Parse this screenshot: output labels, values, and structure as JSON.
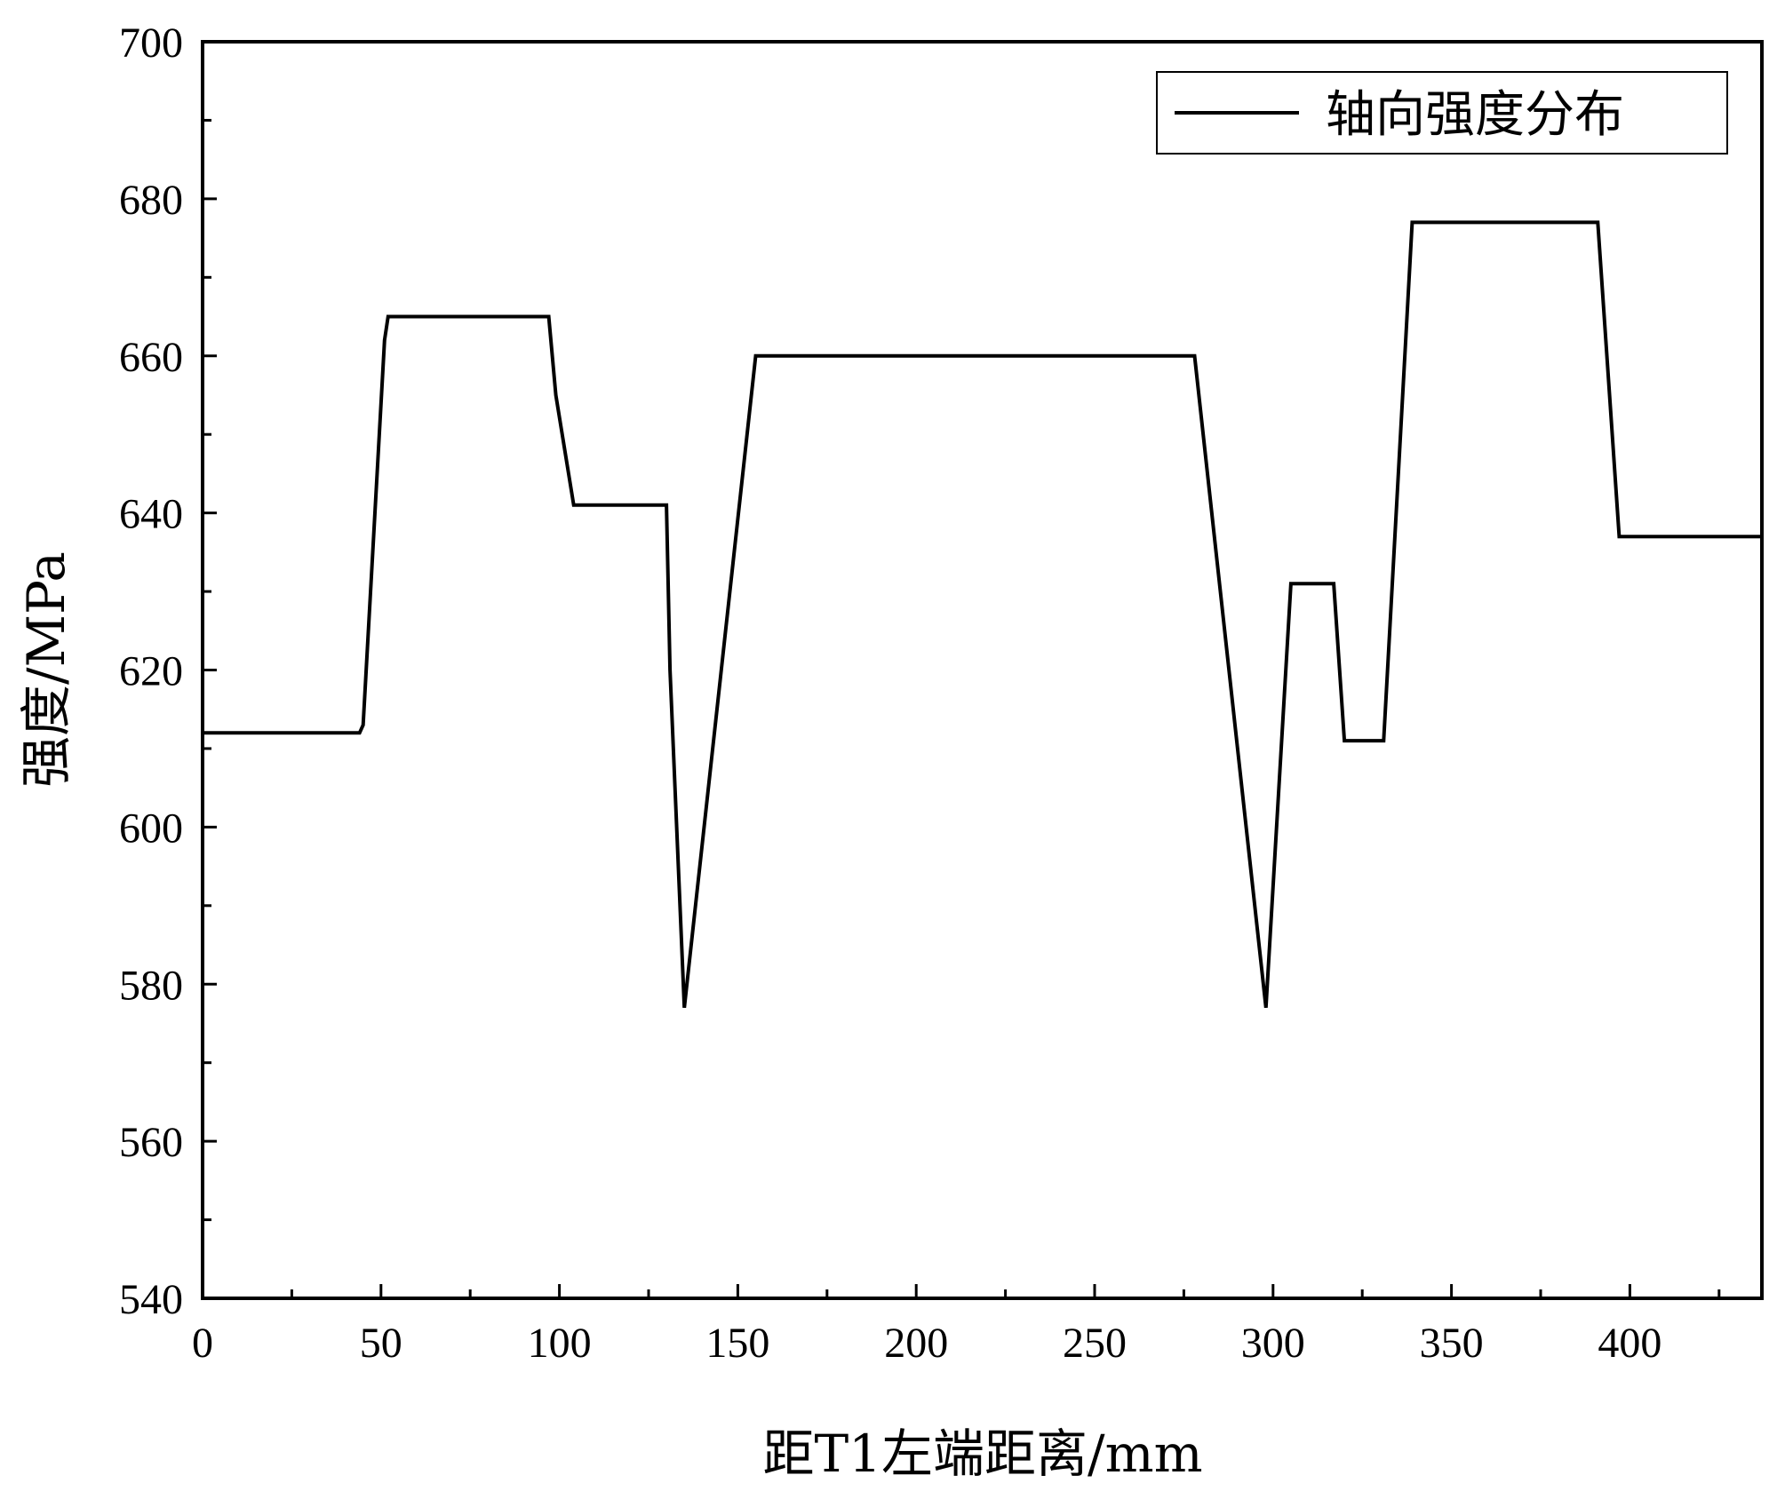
{
  "chart_data": {
    "type": "line",
    "xlabel": "距T1左端距离/mm",
    "ylabel": "强度/MPa",
    "xlim": [
      0,
      437
    ],
    "ylim": [
      540,
      700
    ],
    "xticks": [
      0,
      50,
      100,
      150,
      200,
      250,
      300,
      350,
      400
    ],
    "yticks": [
      540,
      560,
      580,
      600,
      620,
      640,
      660,
      680,
      700
    ],
    "x_minor_step": 25,
    "y_minor_step": 10,
    "grid": false,
    "legend": {
      "position": "top-right",
      "entries": [
        "轴向强度分布"
      ]
    },
    "series": [
      {
        "name": "轴向强度分布",
        "color": "#000000",
        "x": [
          0,
          44,
          45,
          51,
          52,
          97,
          99,
          104,
          130,
          131,
          135,
          155,
          278,
          298,
          305,
          317,
          320,
          331,
          339,
          391,
          397,
          437
        ],
        "y": [
          612,
          612,
          613,
          662,
          665,
          665,
          655,
          641,
          641,
          620,
          577,
          660,
          660,
          577,
          631,
          631,
          611,
          611,
          677,
          677,
          637,
          637
        ]
      }
    ]
  }
}
